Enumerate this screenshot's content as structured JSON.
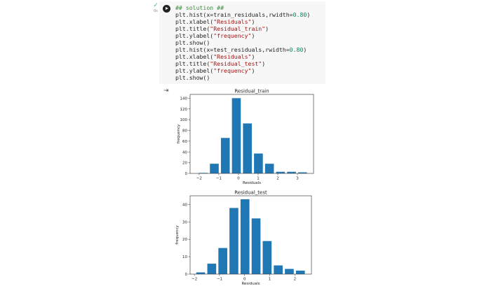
{
  "cell": {
    "status": "0s",
    "code": [
      [
        [
          "cm",
          "## solution ##"
        ]
      ],
      [
        [
          "",
          "plt.hist(x=train_residuals,rwidth="
        ],
        [
          "nm",
          "0.80"
        ],
        [
          "",
          ")"
        ]
      ],
      [
        [
          "",
          "plt.xlabel("
        ],
        [
          "st",
          "\"Residuals\""
        ],
        [
          "",
          ")"
        ]
      ],
      [
        [
          "",
          "plt.title("
        ],
        [
          "st",
          "\"Residual_train\""
        ],
        [
          "",
          ")"
        ]
      ],
      [
        [
          "",
          "plt.ylabel("
        ],
        [
          "st",
          "\"frequency\""
        ],
        [
          "",
          ")"
        ]
      ],
      [
        [
          "",
          "plt.show()"
        ]
      ],
      [
        [
          "",
          "plt.hist(x=test_residuals,rwidth="
        ],
        [
          "nm",
          "0.80"
        ],
        [
          "",
          ")"
        ]
      ],
      [
        [
          "",
          "plt.xlabel("
        ],
        [
          "st",
          "\"Residuals\""
        ],
        [
          "",
          ")"
        ]
      ],
      [
        [
          "",
          "plt.title("
        ],
        [
          "st",
          "\"Residual_test\""
        ],
        [
          "",
          ")"
        ]
      ],
      [
        [
          "",
          "plt.ylabel("
        ],
        [
          "st",
          "\"frequency\""
        ],
        [
          "",
          ")"
        ]
      ],
      [
        [
          "",
          "plt.show()"
        ]
      ]
    ]
  },
  "chart_data": [
    {
      "type": "bar",
      "title": "Residual_train",
      "xlabel": "Residuals",
      "ylabel": "frequency",
      "color": "#1f77b4",
      "bin_start": -2.07,
      "bin_width": 0.561,
      "rwidth": 0.8,
      "values": [
        1,
        18,
        66,
        140,
        93,
        37,
        18,
        3,
        3,
        2
      ],
      "xlim": [
        -2.46,
        3.82
      ],
      "ylim": [
        0,
        147
      ],
      "xticks": [
        -2,
        -1,
        0,
        1,
        2,
        3
      ],
      "yticks": [
        0,
        20,
        40,
        60,
        80,
        100,
        120,
        140
      ]
    },
    {
      "type": "bar",
      "title": "Residual_test",
      "xlabel": "Residuals",
      "ylabel": "frequency",
      "color": "#1f77b4",
      "bin_start": -1.97,
      "bin_width": 0.441,
      "rwidth": 0.8,
      "values": [
        1,
        6,
        15,
        38,
        43,
        32,
        19,
        5,
        3,
        2
      ],
      "xlim": [
        -2.17,
        2.66
      ],
      "ylim": [
        0,
        45
      ],
      "xticks": [
        -2,
        -1,
        0,
        1,
        2
      ],
      "yticks": [
        0,
        10,
        20,
        30,
        40
      ]
    }
  ]
}
